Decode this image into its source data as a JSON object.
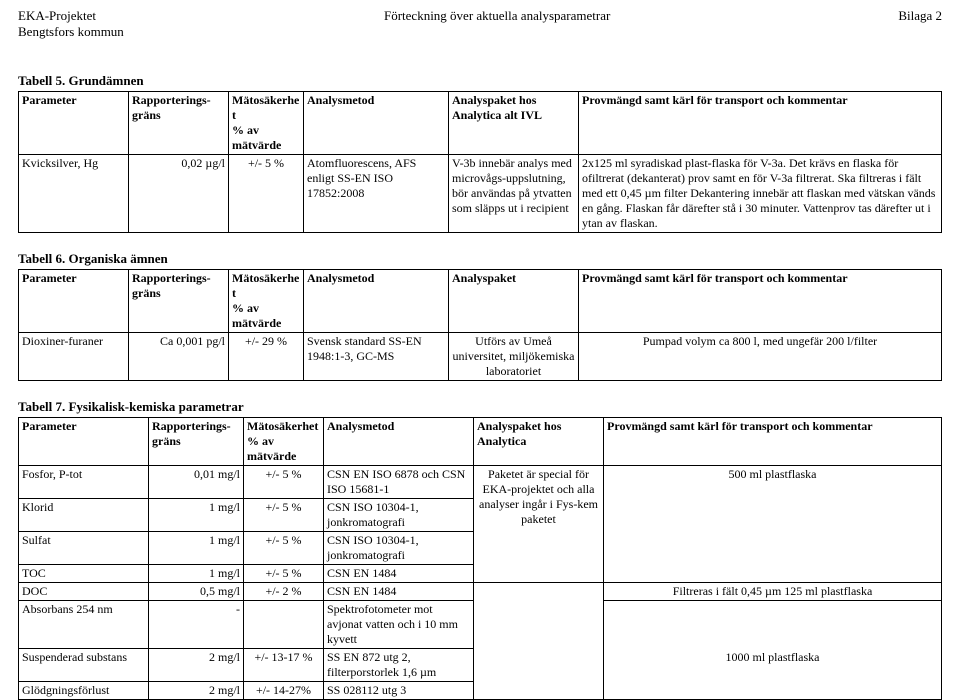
{
  "header": {
    "project": "EKA-Projektet",
    "subtitle": "Bengtsfors kommun",
    "center": "Förteckning över aktuella analysparametrar",
    "right": "Bilaga 2"
  },
  "table5": {
    "title": "Tabell 5. Grundämnen",
    "headers": {
      "param": "Parameter",
      "rapp": "Rapporterings-gräns",
      "oss1": "Mätosäkerhet",
      "oss2": "% av mätvärde",
      "metod": "Analysmetod",
      "paket1": "Analyspaket hos",
      "paket2": "Analytica alt IVL",
      "prov": "Provmängd samt kärl för transport och kommentar"
    },
    "row": {
      "param": "Kvicksilver, Hg",
      "rapp": "0,02 µg/l",
      "oss": "+/- 5 %",
      "metod": "Atomfluorescens, AFS enligt SS-EN ISO 17852:2008",
      "paket": "V-3b innebär analys med microvågs-uppslutning, bör användas på ytvatten som släpps ut i recipient",
      "prov": "2x125 ml syradiskad plast-flaska för V-3a. Det krävs en flaska för ofiltrerat (dekanterat) prov samt en för V-3a filtrerat. Ska filtreras i fält med ett 0,45 µm filter Dekantering innebär att flaskan med vätskan vänds en gång. Flaskan får därefter stå i 30 minuter. Vattenprov tas därefter ut i ytan av flaskan."
    }
  },
  "table6": {
    "title": "Tabell 6. Organiska ämnen",
    "headers": {
      "param": "Parameter",
      "rapp1": "Rapporterings-",
      "rapp2": "gräns",
      "oss1": "Mätosäkerhet",
      "oss2": "% av mätvärde",
      "metod": "Analysmetod",
      "paket": "Analyspaket",
      "prov": "Provmängd samt kärl för transport och kommentar"
    },
    "row": {
      "param": "Dioxiner-furaner",
      "rapp": "Ca 0,001 pg/l",
      "oss": "+/- 29 %",
      "metod": "Svensk standard SS-EN 1948:1-3, GC-MS",
      "paket": "Utförs av Umeå universitet, miljökemiska laboratoriet",
      "prov": "Pumpad volym ca 800 l, med ungefär 200 l/filter"
    }
  },
  "table7": {
    "title": "Tabell 7. Fysikalisk-kemiska parametrar",
    "headers": {
      "param": "Parameter",
      "rapp1": "Rapporterings-",
      "rapp2": "gräns",
      "oss1": "Mätosäkerhet",
      "oss2": "% av mätvärde",
      "metod": "Analysmetod",
      "paket1": "Analyspaket hos",
      "paket2": "Analytica",
      "prov": "Provmängd samt kärl för transport och kommentar"
    },
    "rows": [
      {
        "param": "Fosfor, P-tot",
        "rapp": "0,01 mg/l",
        "oss": "+/- 5 %",
        "metod": "CSN EN ISO 6878 och CSN ISO 15681-1"
      },
      {
        "param": "Klorid",
        "rapp": "1 mg/l",
        "oss": "+/- 5 %",
        "metod": "CSN ISO 10304-1, jonkromatografi"
      },
      {
        "param": "Sulfat",
        "rapp": "1 mg/l",
        "oss": "+/- 5 %",
        "metod": "CSN ISO 10304-1, jonkromatografi"
      },
      {
        "param": "TOC",
        "rapp": "1 mg/l",
        "oss": "+/- 5 %",
        "metod": "CSN EN 1484"
      },
      {
        "param": "DOC",
        "rapp": "0,5 mg/l",
        "oss": "+/- 2 %",
        "metod": "CSN EN 1484"
      },
      {
        "param": "Absorbans 254 nm",
        "rapp": "-",
        "oss": "",
        "metod": "Spektrofotometer mot avjonat vatten och i 10 mm kyvett"
      },
      {
        "param": "Suspenderad substans",
        "rapp": "2 mg/l",
        "oss": "+/- 13-17 %",
        "metod": "SS EN 872 utg 2, filterporstorlek 1,6 µm"
      },
      {
        "param": "Glödgningsförlust",
        "rapp": "2 mg/l",
        "oss": "+/- 14-27%",
        "metod": "SS 028112 utg 3"
      }
    ],
    "paket_merged": "Paketet är special för EKA-projektet och alla analyser ingår i Fys-kem paketet",
    "prov_500": "500 ml plastflaska",
    "prov_doc": "Filtreras i fält 0,45 µm 125 ml plastflaska",
    "prov_1000": "1000 ml plastflaska"
  }
}
